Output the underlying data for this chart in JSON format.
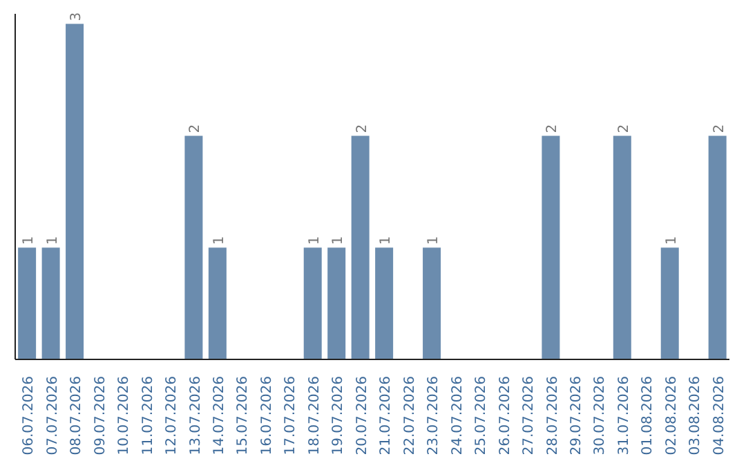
{
  "chart_data": {
    "type": "bar",
    "categories": [
      "06.07.2026",
      "07.07.2026",
      "08.07.2026",
      "09.07.2026",
      "10.07.2026",
      "11.07.2026",
      "12.07.2026",
      "13.07.2026",
      "14.07.2026",
      "15.07.2026",
      "16.07.2026",
      "17.07.2026",
      "18.07.2026",
      "19.07.2026",
      "20.07.2026",
      "21.07.2026",
      "22.07.2026",
      "23.07.2026",
      "24.07.2026",
      "25.07.2026",
      "26.07.2026",
      "27.07.2026",
      "28.07.2026",
      "29.07.2026",
      "30.07.2026",
      "31.07.2026",
      "01.08.2026",
      "02.08.2026",
      "03.08.2026",
      "04.08.2026"
    ],
    "values": [
      1,
      1,
      3,
      0,
      0,
      0,
      0,
      2,
      1,
      0,
      0,
      0,
      1,
      1,
      2,
      1,
      0,
      1,
      0,
      0,
      0,
      0,
      2,
      0,
      0,
      2,
      0,
      1,
      0,
      2
    ],
    "value_labels": [
      "1",
      "1",
      "3",
      null,
      null,
      null,
      null,
      "2",
      "1",
      null,
      null,
      null,
      "1",
      "1",
      "2",
      "1",
      null,
      "1",
      null,
      null,
      null,
      null,
      "2",
      null,
      null,
      "2",
      null,
      "1",
      null,
      "2"
    ],
    "color": "#6b8cae",
    "tick_labels": "x",
    "grid": false
  }
}
